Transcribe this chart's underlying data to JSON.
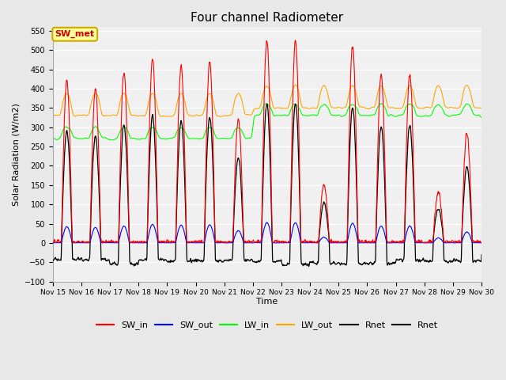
{
  "title": "Four channel Radiometer",
  "xlabel": "Time",
  "ylabel": "Solar Radiation (W/m2)",
  "ylim": [
    -100,
    560
  ],
  "yticks": [
    -100,
    -50,
    0,
    50,
    100,
    150,
    200,
    250,
    300,
    350,
    400,
    450,
    500,
    550
  ],
  "annotation_text": "SW_met",
  "annotation_color": "#cc0000",
  "annotation_bg": "#ffff99",
  "annotation_border": "#ccaa00",
  "legend_entries": [
    "SW_in",
    "SW_out",
    "LW_in",
    "LW_out",
    "Rnet",
    "Rnet"
  ],
  "legend_colors": [
    "red",
    "blue",
    "lime",
    "orange",
    "black",
    "black"
  ],
  "bg_color": "#e8e8e8",
  "plot_bg": "#f0f0f0",
  "start_day": 15,
  "end_day": 30,
  "n_points": 4320
}
